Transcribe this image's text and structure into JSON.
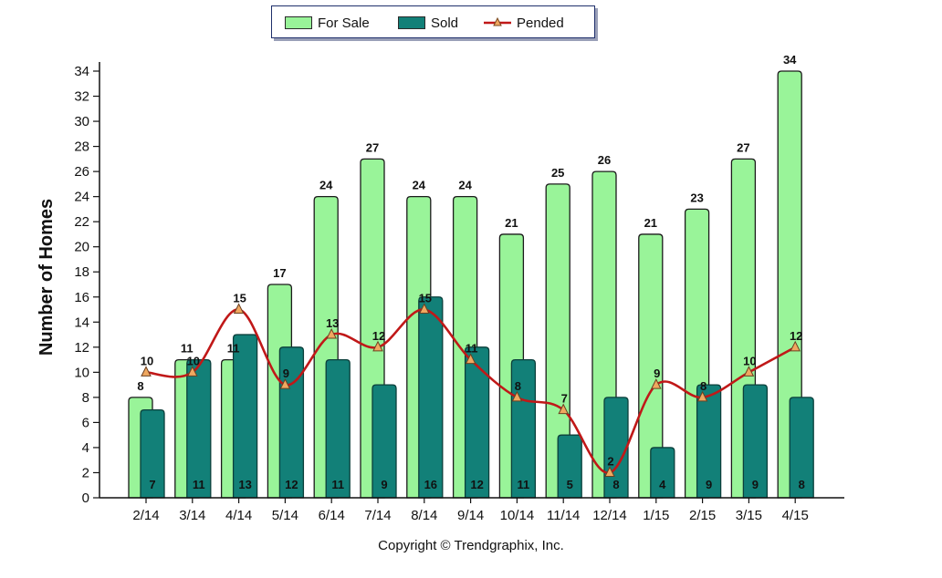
{
  "legend": {
    "for_sale": "For Sale",
    "sold": "Sold",
    "pended": "Pended"
  },
  "copyright": "Copyright © Trendgraphix, Inc.",
  "colors": {
    "for_sale": "#99f499",
    "sold": "#128078",
    "pended": "#c01818",
    "marker": "#f0a860"
  },
  "chart_data": {
    "type": "bar",
    "ylabel": "Number of Homes",
    "xlabel": "",
    "ylim": [
      0,
      34
    ],
    "yticks": [
      0,
      2,
      4,
      6,
      8,
      10,
      12,
      14,
      16,
      18,
      20,
      22,
      24,
      26,
      28,
      30,
      32,
      34
    ],
    "categories": [
      "2/14",
      "3/14",
      "4/14",
      "5/14",
      "6/14",
      "7/14",
      "8/14",
      "9/14",
      "10/14",
      "11/14",
      "12/14",
      "1/15",
      "2/15",
      "3/15",
      "4/15"
    ],
    "series": [
      {
        "name": "For Sale",
        "type": "bar",
        "values": [
          8,
          11,
          11,
          17,
          24,
          27,
          24,
          24,
          21,
          25,
          26,
          21,
          23,
          27,
          34
        ]
      },
      {
        "name": "Sold",
        "type": "bar",
        "values": [
          7,
          11,
          13,
          12,
          11,
          9,
          16,
          12,
          11,
          5,
          8,
          4,
          9,
          9,
          8
        ]
      },
      {
        "name": "Pended",
        "type": "line",
        "values": [
          10,
          10,
          15,
          9,
          13,
          12,
          15,
          11,
          8,
          7,
          2,
          9,
          8,
          10,
          12
        ]
      }
    ],
    "legend_position": "top-center",
    "grid": false
  }
}
